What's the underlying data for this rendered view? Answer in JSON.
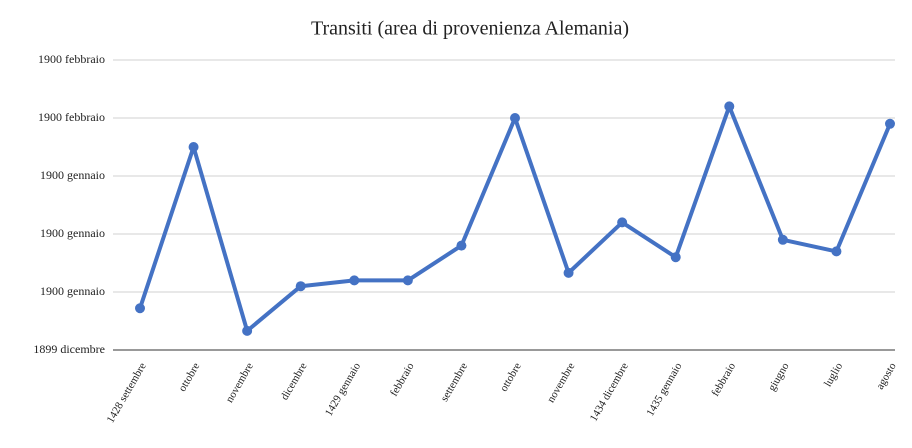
{
  "chart_data": {
    "type": "line",
    "title": "Transiti (area di provenienza Alemania)",
    "categories": [
      "1428 settembre",
      "ottobre",
      "novembre",
      "dicembre",
      "1429 gennaio",
      "febbraio",
      "settembre",
      "ottobre",
      "novembre",
      "1434 dicembre",
      "1435 gennaio",
      "febbraio",
      "giugno",
      "luglio",
      "agosto"
    ],
    "series": [
      {
        "name": "Transiti",
        "color": "#4472c4",
        "values": [
          7.2,
          35,
          3.3,
          11,
          12,
          12,
          18,
          40,
          13.3,
          22,
          16,
          42,
          19,
          17,
          39
        ]
      }
    ],
    "ylim": [
      0,
      50
    ],
    "yticks": [
      {
        "value": 0,
        "label": "1899 dicembre"
      },
      {
        "value": 10,
        "label": "1900 gennaio"
      },
      {
        "value": 20,
        "label": "1900 gennaio"
      },
      {
        "value": 30,
        "label": "1900 gennaio"
      },
      {
        "value": 40,
        "label": "1900 febbraio"
      },
      {
        "value": 50,
        "label": "1900 febbraio"
      }
    ],
    "grid": true
  }
}
